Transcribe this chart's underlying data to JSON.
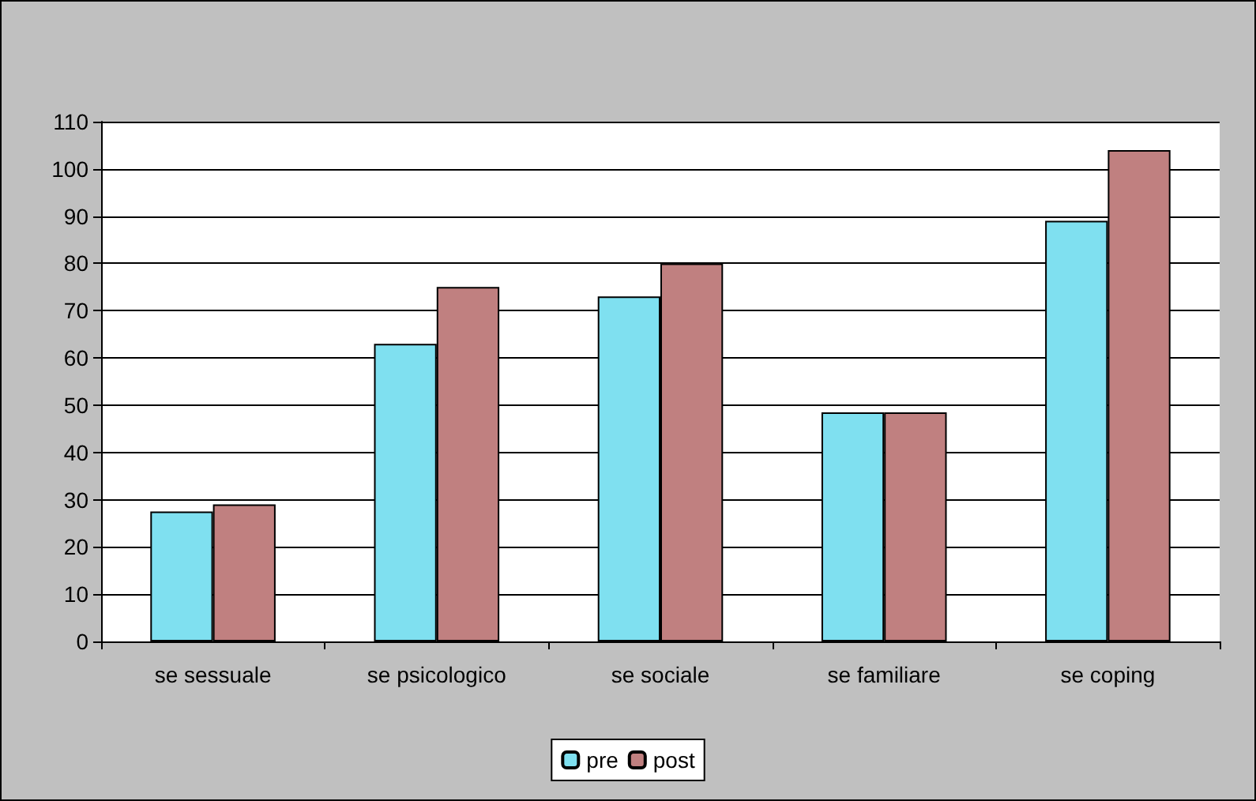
{
  "chart_data": {
    "type": "bar",
    "categories": [
      "se sessuale",
      "se psicologico",
      "se sociale",
      "se familiare",
      "se coping"
    ],
    "series": [
      {
        "name": "pre",
        "color": "#7fe0f0",
        "values": [
          27.5,
          63,
          73,
          48.5,
          89
        ]
      },
      {
        "name": "post",
        "color": "#c08080",
        "values": [
          29,
          75,
          80,
          48.5,
          104
        ]
      }
    ],
    "ylim": [
      0,
      110
    ],
    "yticks": [
      0,
      10,
      20,
      30,
      40,
      50,
      60,
      70,
      80,
      90,
      100,
      110
    ],
    "grid": "y",
    "legend": "bottom"
  }
}
